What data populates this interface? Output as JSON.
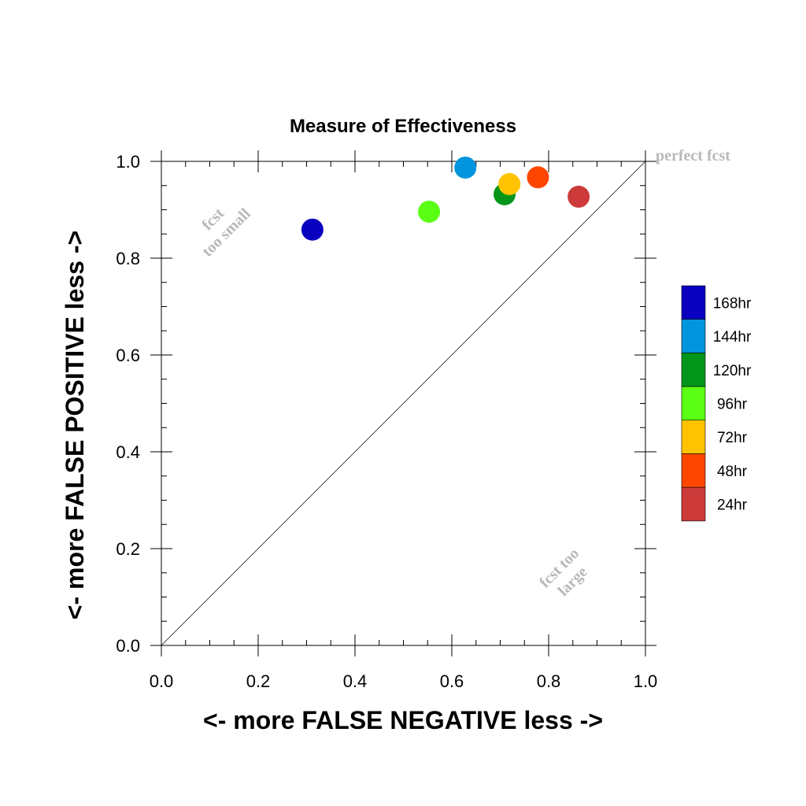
{
  "chart_data": {
    "type": "scatter",
    "title": "Measure of Effectiveness",
    "xlabel": "<- more   FALSE NEGATIVE   less ->",
    "ylabel": "<- more   FALSE POSITIVE   less ->",
    "xlim": [
      0.0,
      1.0
    ],
    "ylim": [
      0.0,
      1.0
    ],
    "xticks": [
      "0.0",
      "0.2",
      "0.4",
      "0.6",
      "0.8",
      "1.0"
    ],
    "yticks": [
      "0.0",
      "0.2",
      "0.4",
      "0.6",
      "0.8",
      "1.0"
    ],
    "grid": false,
    "diagonal_line": true,
    "annotations": {
      "perfect": "perfect fcst",
      "small_line1": "fcst",
      "small_line2": "too small",
      "large_line1": "fcst too",
      "large_line2": "large"
    },
    "legend_placement": "right",
    "legend": [
      {
        "label": "168hr",
        "color": "#0a00c0"
      },
      {
        "label": "144hr",
        "color": "#0095dc"
      },
      {
        "label": "120hr",
        "color": "#03961a"
      },
      {
        "label": "96hr",
        "color": "#5aff14"
      },
      {
        "label": "72hr",
        "color": "#ffc300"
      },
      {
        "label": "48hr",
        "color": "#ff4600"
      },
      {
        "label": "24hr",
        "color": "#cd3a3a"
      }
    ],
    "points": [
      {
        "label": "168hr",
        "x": 0.312,
        "y": 0.859,
        "color": "#0a00c0"
      },
      {
        "label": "144hr",
        "x": 0.628,
        "y": 0.987,
        "color": "#0095dc"
      },
      {
        "label": "120hr",
        "x": 0.709,
        "y": 0.932,
        "color": "#03961a"
      },
      {
        "label": "96hr",
        "x": 0.553,
        "y": 0.896,
        "color": "#5aff14"
      },
      {
        "label": "72hr",
        "x": 0.719,
        "y": 0.953,
        "color": "#ffc300"
      },
      {
        "label": "48hr",
        "x": 0.778,
        "y": 0.967,
        "color": "#ff4600"
      },
      {
        "label": "24hr",
        "x": 0.862,
        "y": 0.927,
        "color": "#cd3a3a"
      }
    ]
  }
}
